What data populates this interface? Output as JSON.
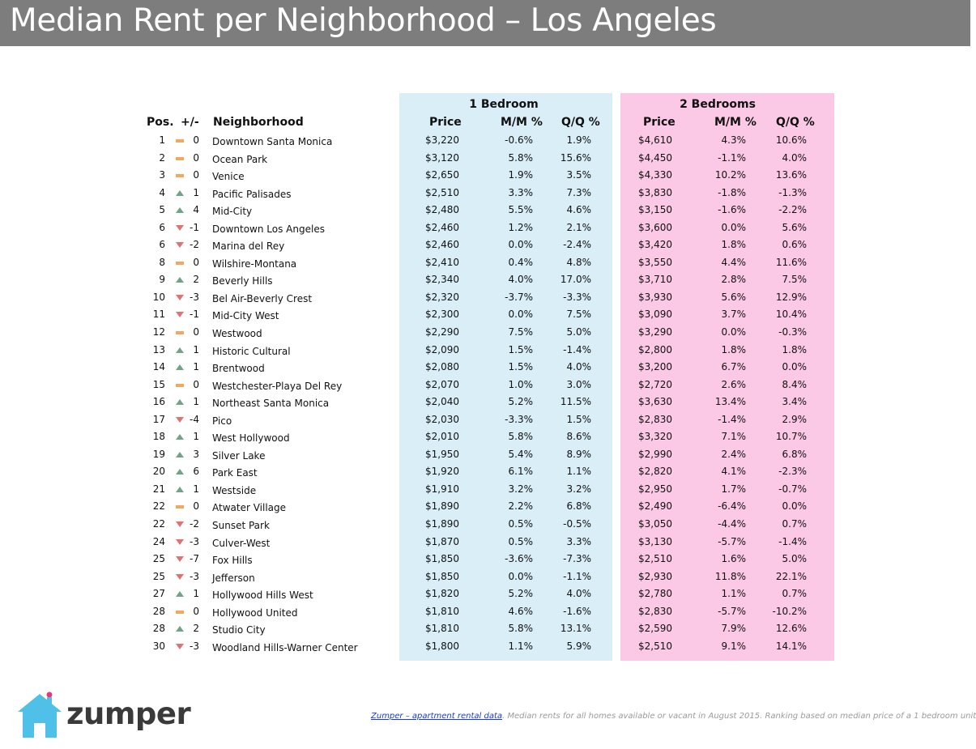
{
  "title": "Median Rent per Neighborhood – Los Angeles",
  "groups": {
    "one_bedroom": "1 Bedroom",
    "two_bedrooms": "2 Bedrooms"
  },
  "headers": {
    "pos": "Pos.",
    "change": "+/-",
    "neighborhood": "Neighborhood",
    "price": "Price",
    "mm": "M/M %",
    "qq": "Q/Q %"
  },
  "colors": {
    "title_bar": "#7d7d7d",
    "one_bedroom_panel": "#d9eef7",
    "two_bedroom_panel": "#fbc9e5",
    "up": "#6fa488",
    "down": "#e07272",
    "flat": "#f4a85f",
    "logo_house": "#4fc0e8"
  },
  "rows": [
    {
      "pos": "1",
      "dir": "flat",
      "change": "0",
      "name": "Downtown Santa Monica",
      "p1": "$3,220",
      "m1": "-0.6%",
      "q1": "1.9%",
      "p2": "$4,610",
      "m2": "4.3%",
      "q2": "10.6%"
    },
    {
      "pos": "2",
      "dir": "flat",
      "change": "0",
      "name": "Ocean Park",
      "p1": "$3,120",
      "m1": "5.8%",
      "q1": "15.6%",
      "p2": "$4,450",
      "m2": "-1.1%",
      "q2": "4.0%"
    },
    {
      "pos": "3",
      "dir": "flat",
      "change": "0",
      "name": "Venice",
      "p1": "$2,650",
      "m1": "1.9%",
      "q1": "3.5%",
      "p2": "$4,330",
      "m2": "10.2%",
      "q2": "13.6%"
    },
    {
      "pos": "4",
      "dir": "up",
      "change": "1",
      "name": "Pacific Palisades",
      "p1": "$2,510",
      "m1": "3.3%",
      "q1": "7.3%",
      "p2": "$3,830",
      "m2": "-1.8%",
      "q2": "-1.3%"
    },
    {
      "pos": "5",
      "dir": "up",
      "change": "4",
      "name": "Mid-City",
      "p1": "$2,480",
      "m1": "5.5%",
      "q1": "4.6%",
      "p2": "$3,150",
      "m2": "-1.6%",
      "q2": "-2.2%"
    },
    {
      "pos": "6",
      "dir": "down",
      "change": "-1",
      "name": "Downtown Los Angeles",
      "p1": "$2,460",
      "m1": "1.2%",
      "q1": "2.1%",
      "p2": "$3,600",
      "m2": "0.0%",
      "q2": "5.6%"
    },
    {
      "pos": "6",
      "dir": "down",
      "change": "-2",
      "name": "Marina del Rey",
      "p1": "$2,460",
      "m1": "0.0%",
      "q1": "-2.4%",
      "p2": "$3,420",
      "m2": "1.8%",
      "q2": "0.6%"
    },
    {
      "pos": "8",
      "dir": "flat",
      "change": "0",
      "name": "Wilshire-Montana",
      "p1": "$2,410",
      "m1": "0.4%",
      "q1": "4.8%",
      "p2": "$3,550",
      "m2": "4.4%",
      "q2": "11.6%"
    },
    {
      "pos": "9",
      "dir": "up",
      "change": "2",
      "name": "Beverly Hills",
      "p1": "$2,340",
      "m1": "4.0%",
      "q1": "17.0%",
      "p2": "$3,710",
      "m2": "2.8%",
      "q2": "7.5%"
    },
    {
      "pos": "10",
      "dir": "down",
      "change": "-3",
      "name": "Bel Air-Beverly Crest",
      "p1": "$2,320",
      "m1": "-3.7%",
      "q1": "-3.3%",
      "p2": "$3,930",
      "m2": "5.6%",
      "q2": "12.9%"
    },
    {
      "pos": "11",
      "dir": "down",
      "change": "-1",
      "name": "Mid-City West",
      "p1": "$2,300",
      "m1": "0.0%",
      "q1": "7.5%",
      "p2": "$3,090",
      "m2": "3.7%",
      "q2": "10.4%"
    },
    {
      "pos": "12",
      "dir": "flat",
      "change": "0",
      "name": "Westwood",
      "p1": "$2,290",
      "m1": "7.5%",
      "q1": "5.0%",
      "p2": "$3,290",
      "m2": "0.0%",
      "q2": "-0.3%"
    },
    {
      "pos": "13",
      "dir": "up",
      "change": "1",
      "name": "Historic Cultural",
      "p1": "$2,090",
      "m1": "1.5%",
      "q1": "-1.4%",
      "p2": "$2,800",
      "m2": "1.8%",
      "q2": "1.8%"
    },
    {
      "pos": "14",
      "dir": "up",
      "change": "1",
      "name": "Brentwood",
      "p1": "$2,080",
      "m1": "1.5%",
      "q1": "4.0%",
      "p2": "$3,200",
      "m2": "6.7%",
      "q2": "0.0%"
    },
    {
      "pos": "15",
      "dir": "flat",
      "change": "0",
      "name": "Westchester-Playa Del Rey",
      "p1": "$2,070",
      "m1": "1.0%",
      "q1": "3.0%",
      "p2": "$2,720",
      "m2": "2.6%",
      "q2": "8.4%"
    },
    {
      "pos": "16",
      "dir": "up",
      "change": "1",
      "name": "Northeast Santa Monica",
      "p1": "$2,040",
      "m1": "5.2%",
      "q1": "11.5%",
      "p2": "$3,630",
      "m2": "13.4%",
      "q2": "3.4%"
    },
    {
      "pos": "17",
      "dir": "down",
      "change": "-4",
      "name": "Pico",
      "p1": "$2,030",
      "m1": "-3.3%",
      "q1": "1.5%",
      "p2": "$2,830",
      "m2": "-1.4%",
      "q2": "2.9%"
    },
    {
      "pos": "18",
      "dir": "up",
      "change": "1",
      "name": "West Hollywood",
      "p1": "$2,010",
      "m1": "5.8%",
      "q1": "8.6%",
      "p2": "$3,320",
      "m2": "7.1%",
      "q2": "10.7%"
    },
    {
      "pos": "19",
      "dir": "up",
      "change": "3",
      "name": "Silver Lake",
      "p1": "$1,950",
      "m1": "5.4%",
      "q1": "8.9%",
      "p2": "$2,990",
      "m2": "2.4%",
      "q2": "6.8%"
    },
    {
      "pos": "20",
      "dir": "up",
      "change": "6",
      "name": "Park East",
      "p1": "$1,920",
      "m1": "6.1%",
      "q1": "1.1%",
      "p2": "$2,820",
      "m2": "4.1%",
      "q2": "-2.3%"
    },
    {
      "pos": "21",
      "dir": "up",
      "change": "1",
      "name": "Westside",
      "p1": "$1,910",
      "m1": "3.2%",
      "q1": "3.2%",
      "p2": "$2,950",
      "m2": "1.7%",
      "q2": "-0.7%"
    },
    {
      "pos": "22",
      "dir": "flat",
      "change": "0",
      "name": "Atwater Village",
      "p1": "$1,890",
      "m1": "2.2%",
      "q1": "6.8%",
      "p2": "$2,490",
      "m2": "-6.4%",
      "q2": "0.0%"
    },
    {
      "pos": "22",
      "dir": "down",
      "change": "-2",
      "name": "Sunset Park",
      "p1": "$1,890",
      "m1": "0.5%",
      "q1": "-0.5%",
      "p2": "$3,050",
      "m2": "-4.4%",
      "q2": "0.7%"
    },
    {
      "pos": "24",
      "dir": "down",
      "change": "-3",
      "name": "Culver-West",
      "p1": "$1,870",
      "m1": "0.5%",
      "q1": "3.3%",
      "p2": "$3,130",
      "m2": "-5.7%",
      "q2": "-1.4%"
    },
    {
      "pos": "25",
      "dir": "down",
      "change": "-7",
      "name": "Fox Hills",
      "p1": "$1,850",
      "m1": "-3.6%",
      "q1": "-7.3%",
      "p2": "$2,510",
      "m2": "1.6%",
      "q2": "5.0%"
    },
    {
      "pos": "25",
      "dir": "down",
      "change": "-3",
      "name": "Jefferson",
      "p1": "$1,850",
      "m1": "0.0%",
      "q1": "-1.1%",
      "p2": "$2,930",
      "m2": "11.8%",
      "q2": "22.1%"
    },
    {
      "pos": "27",
      "dir": "up",
      "change": "1",
      "name": "Hollywood Hills West",
      "p1": "$1,820",
      "m1": "5.2%",
      "q1": "4.0%",
      "p2": "$2,780",
      "m2": "1.1%",
      "q2": "0.7%"
    },
    {
      "pos": "28",
      "dir": "flat",
      "change": "0",
      "name": "Hollywood United",
      "p1": "$1,810",
      "m1": "4.6%",
      "q1": "-1.6%",
      "p2": "$2,830",
      "m2": "-5.7%",
      "q2": "-10.2%"
    },
    {
      "pos": "28",
      "dir": "up",
      "change": "2",
      "name": "Studio City",
      "p1": "$1,810",
      "m1": "5.8%",
      "q1": "13.1%",
      "p2": "$2,590",
      "m2": "7.9%",
      "q2": "12.6%"
    },
    {
      "pos": "30",
      "dir": "down",
      "change": "-3",
      "name": "Woodland Hills-Warner Center",
      "p1": "$1,800",
      "m1": "1.1%",
      "q1": "5.9%",
      "p2": "$2,510",
      "m2": "9.1%",
      "q2": "14.1%"
    }
  ],
  "logo": {
    "text": "zumper"
  },
  "footer": {
    "link": "Zumper – apartment rental data",
    "note": ". Median rents for all homes available or vacant in August 2015. Ranking based on median price of a 1 bedroom unit"
  }
}
